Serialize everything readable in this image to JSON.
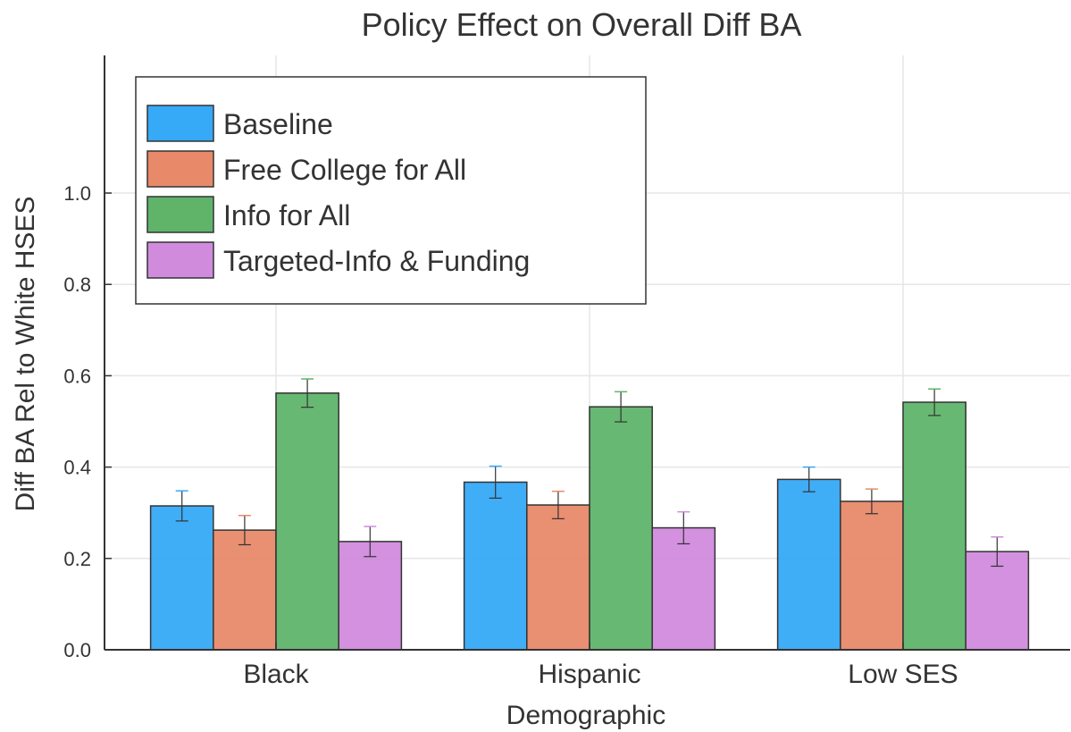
{
  "chart_data": {
    "type": "bar",
    "title": "Policy Effect on Overall Diff BA",
    "xlabel": "Demographic",
    "ylabel": "Diff BA Rel to White HSES",
    "categories": [
      "Black",
      "Hispanic",
      "Low SES"
    ],
    "yticks": [
      0.0,
      0.2,
      0.4,
      0.6,
      0.8,
      1.0
    ],
    "ytick_labels": [
      "0.0",
      "0.2",
      "0.4",
      "0.6",
      "0.8",
      "1.0"
    ],
    "ylim": [
      0.0,
      1.3
    ],
    "grid": true,
    "legend_position": "top-left",
    "series": [
      {
        "name": "Baseline",
        "color": "#36a9f7",
        "values": [
          0.315,
          0.367,
          0.373
        ],
        "errors": [
          0.033,
          0.035,
          0.027
        ]
      },
      {
        "name": "Free College for All",
        "color": "#e8896a",
        "values": [
          0.262,
          0.317,
          0.325
        ],
        "errors": [
          0.032,
          0.03,
          0.027
        ]
      },
      {
        "name": "Info for All",
        "color": "#5fb46a",
        "values": [
          0.562,
          0.532,
          0.542
        ],
        "errors": [
          0.031,
          0.033,
          0.029
        ]
      },
      {
        "name": "Targeted-Info & Funding",
        "color": "#d18bdd",
        "values": [
          0.237,
          0.267,
          0.215
        ],
        "errors": [
          0.033,
          0.035,
          0.032
        ]
      }
    ]
  }
}
